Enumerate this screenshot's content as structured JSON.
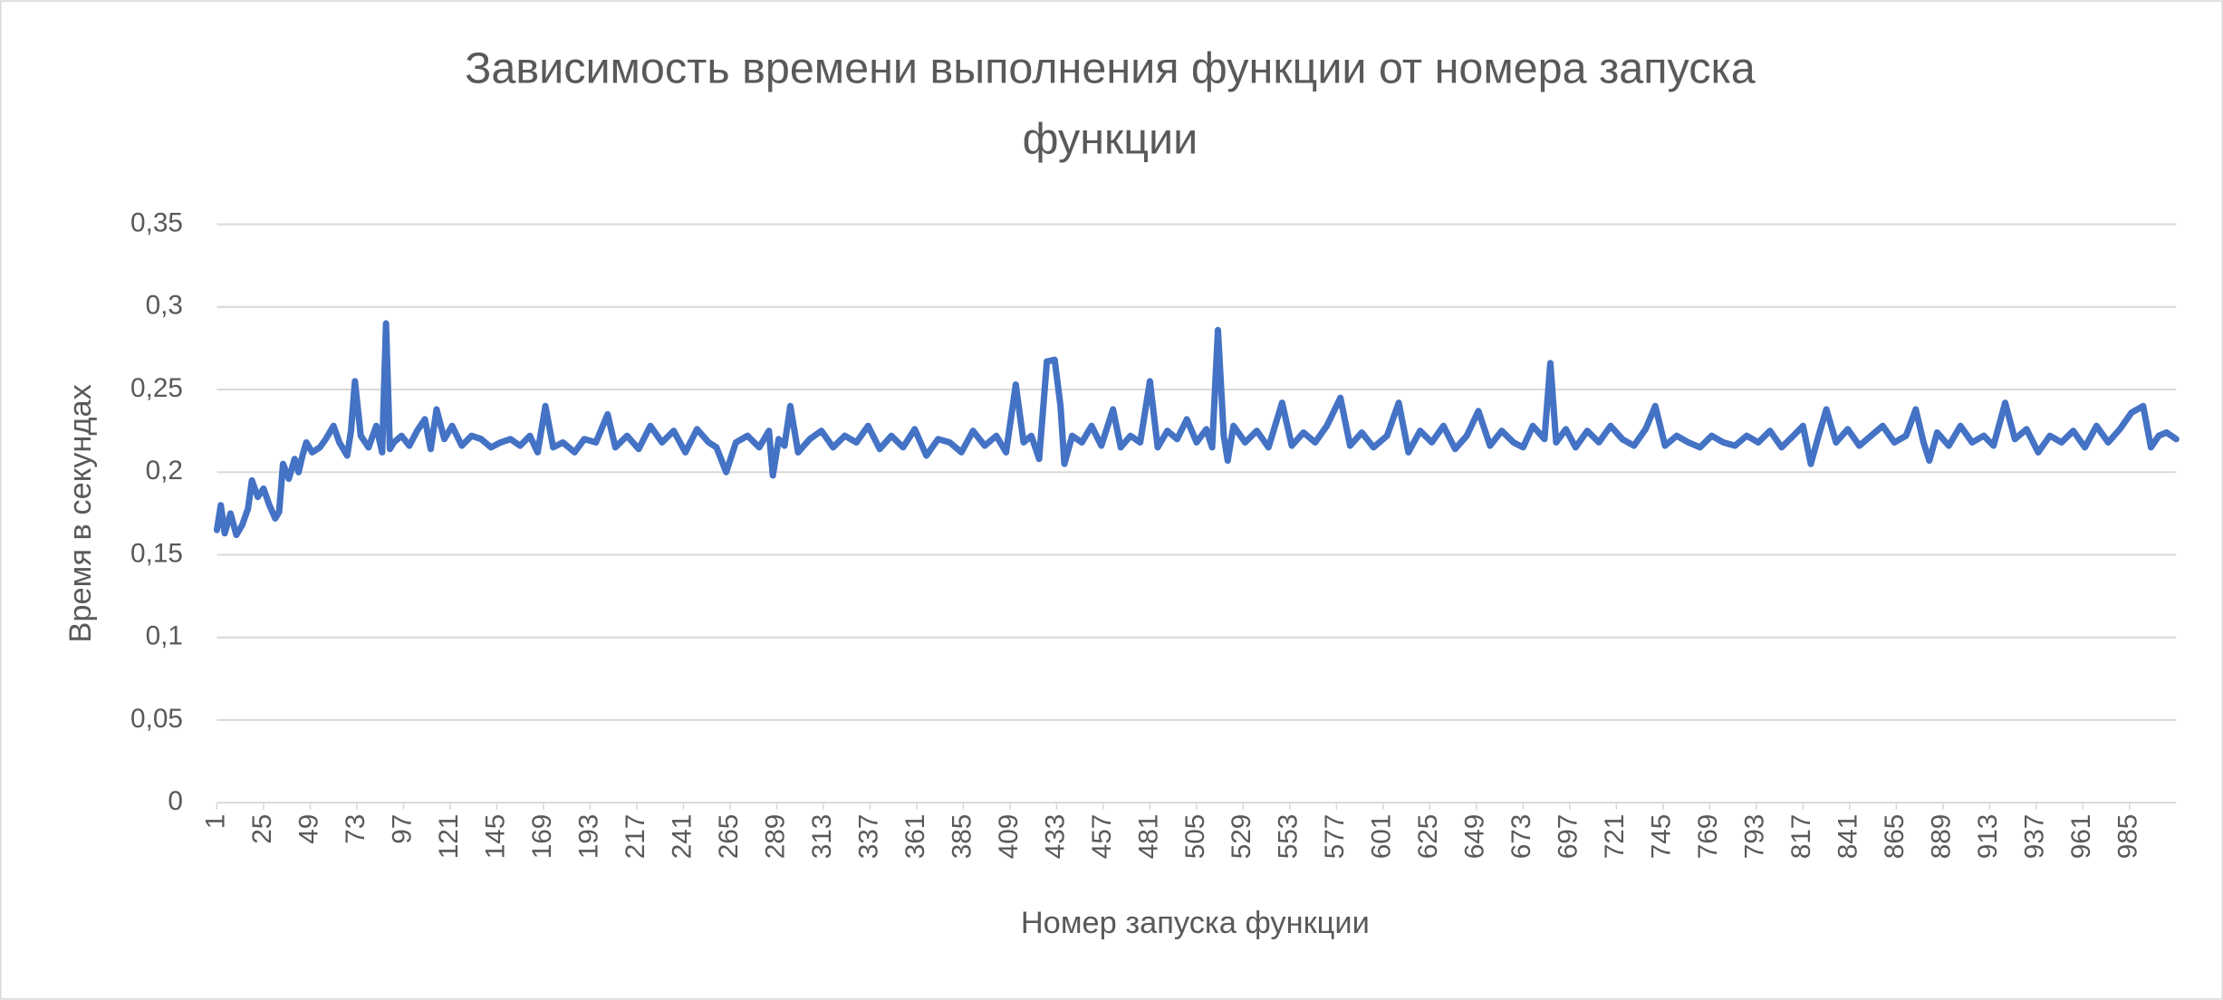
{
  "chart_data": {
    "type": "line",
    "title": [
      "Зависимость времени выполнения функции от номера запуска",
      "функции"
    ],
    "x_label": "Номер запуска функции",
    "y_label": "Время в секундах",
    "color": "#4472c4",
    "grid": true,
    "xlim": [
      1,
      1009
    ],
    "xticks": [
      1,
      25,
      49,
      73,
      97,
      121,
      145,
      169,
      193,
      217,
      241,
      265,
      289,
      313,
      337,
      361,
      385,
      409,
      433,
      457,
      481,
      505,
      529,
      553,
      577,
      601,
      625,
      649,
      673,
      697,
      721,
      745,
      769,
      793,
      817,
      841,
      865,
      889,
      913,
      937,
      961,
      985
    ],
    "ylim": [
      0,
      0.35
    ],
    "yticks": [
      0,
      {
        "value": 0.05,
        "label": "0,05"
      },
      {
        "value": 0.1,
        "label": "0,1"
      },
      {
        "value": 0.15,
        "label": "0,15"
      },
      {
        "value": 0.2,
        "label": "0,2"
      },
      {
        "value": 0.25,
        "label": "0,25"
      },
      {
        "value": 0.3,
        "label": "0,3"
      },
      {
        "value": 0.35,
        "label": "0,35"
      }
    ],
    "x": [
      1,
      3,
      5,
      8,
      11,
      14,
      17,
      19,
      22,
      25,
      28,
      31,
      33,
      35,
      38,
      41,
      43,
      45,
      47,
      50,
      54,
      57,
      61,
      64,
      68,
      70,
      72,
      75,
      79,
      83,
      86,
      88,
      90,
      92,
      96,
      100,
      104,
      108,
      111,
      114,
      118,
      122,
      127,
      132,
      137,
      142,
      147,
      152,
      157,
      162,
      166,
      170,
      174,
      179,
      185,
      190,
      196,
      202,
      206,
      212,
      218,
      224,
      230,
      236,
      242,
      248,
      254,
      258,
      263,
      268,
      274,
      280,
      285,
      287,
      290,
      293,
      296,
      300,
      306,
      312,
      318,
      324,
      330,
      336,
      342,
      348,
      354,
      360,
      366,
      372,
      378,
      384,
      390,
      396,
      402,
      407,
      412,
      416,
      420,
      424,
      428,
      432,
      435,
      437,
      441,
      446,
      451,
      456,
      462,
      466,
      471,
      476,
      481,
      485,
      490,
      495,
      500,
      505,
      510,
      513,
      516,
      519,
      521,
      524,
      530,
      536,
      542,
      549,
      554,
      560,
      566,
      572,
      579,
      584,
      590,
      596,
      603,
      609,
      614,
      620,
      626,
      632,
      638,
      644,
      650,
      656,
      662,
      668,
      673,
      678,
      684,
      687,
      690,
      695,
      700,
      706,
      712,
      718,
      724,
      730,
      736,
      741,
      746,
      752,
      758,
      764,
      770,
      776,
      782,
      788,
      794,
      800,
      806,
      812,
      817,
      821,
      825,
      829,
      834,
      840,
      846,
      852,
      858,
      864,
      870,
      875,
      879,
      882,
      886,
      892,
      898,
      904,
      910,
      915,
      921,
      926,
      932,
      938,
      944,
      950,
      956,
      962,
      968,
      974,
      980,
      986,
      992,
      996,
      1000,
      1004,
      1009
    ],
    "values": [
      0.165,
      0.18,
      0.163,
      0.175,
      0.162,
      0.168,
      0.178,
      0.195,
      0.185,
      0.19,
      0.18,
      0.172,
      0.176,
      0.205,
      0.196,
      0.208,
      0.2,
      0.21,
      0.218,
      0.212,
      0.215,
      0.22,
      0.228,
      0.218,
      0.21,
      0.225,
      0.255,
      0.222,
      0.215,
      0.228,
      0.212,
      0.29,
      0.214,
      0.218,
      0.222,
      0.216,
      0.225,
      0.232,
      0.214,
      0.238,
      0.22,
      0.228,
      0.216,
      0.222,
      0.22,
      0.215,
      0.218,
      0.22,
      0.216,
      0.222,
      0.212,
      0.24,
      0.215,
      0.218,
      0.212,
      0.22,
      0.218,
      0.235,
      0.215,
      0.222,
      0.214,
      0.228,
      0.218,
      0.225,
      0.212,
      0.226,
      0.218,
      0.215,
      0.2,
      0.218,
      0.222,
      0.215,
      0.225,
      0.198,
      0.22,
      0.216,
      0.24,
      0.212,
      0.22,
      0.225,
      0.215,
      0.222,
      0.218,
      0.228,
      0.214,
      0.222,
      0.215,
      0.226,
      0.21,
      0.22,
      0.218,
      0.212,
      0.225,
      0.216,
      0.222,
      0.212,
      0.253,
      0.218,
      0.222,
      0.208,
      0.267,
      0.268,
      0.24,
      0.205,
      0.222,
      0.218,
      0.228,
      0.216,
      0.238,
      0.215,
      0.222,
      0.218,
      0.255,
      0.215,
      0.225,
      0.22,
      0.232,
      0.218,
      0.226,
      0.215,
      0.286,
      0.222,
      0.207,
      0.228,
      0.218,
      0.225,
      0.215,
      0.242,
      0.216,
      0.224,
      0.218,
      0.228,
      0.245,
      0.216,
      0.224,
      0.215,
      0.222,
      0.242,
      0.212,
      0.225,
      0.218,
      0.228,
      0.214,
      0.222,
      0.237,
      0.216,
      0.225,
      0.218,
      0.215,
      0.228,
      0.22,
      0.266,
      0.218,
      0.226,
      0.215,
      0.225,
      0.218,
      0.228,
      0.22,
      0.216,
      0.226,
      0.24,
      0.216,
      0.222,
      0.218,
      0.215,
      0.222,
      0.218,
      0.216,
      0.222,
      0.218,
      0.225,
      0.215,
      0.222,
      0.228,
      0.205,
      0.222,
      0.238,
      0.218,
      0.226,
      0.216,
      0.222,
      0.228,
      0.218,
      0.222,
      0.238,
      0.218,
      0.207,
      0.224,
      0.216,
      0.228,
      0.218,
      0.222,
      0.216,
      0.242,
      0.22,
      0.226,
      0.212,
      0.222,
      0.218,
      0.225,
      0.215,
      0.228,
      0.218,
      0.226,
      0.236,
      0.24,
      0.215,
      0.222,
      0.224,
      0.22
    ]
  }
}
